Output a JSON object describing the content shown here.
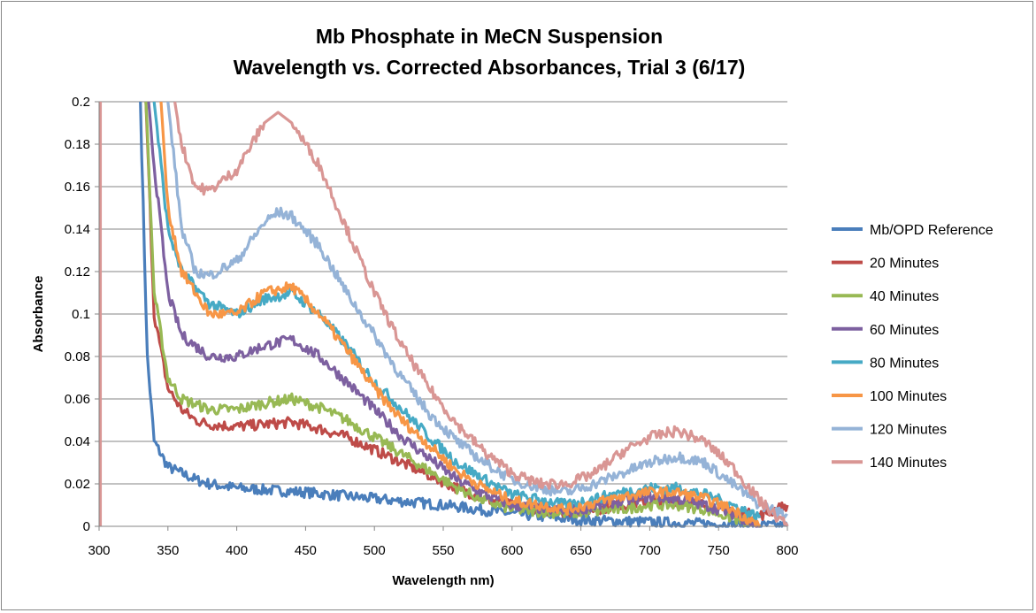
{
  "chart_data": {
    "type": "line",
    "title": [
      "Mb Phosphate in MeCN Suspension",
      "Wavelength vs. Corrected Absorbances, Trial 3 (6/17)"
    ],
    "xlabel": "Wavelength nm)",
    "ylabel": "Absorbance",
    "xlim": [
      300,
      800
    ],
    "ylim": [
      0,
      0.2
    ],
    "xticks": [
      300,
      350,
      400,
      450,
      500,
      550,
      600,
      650,
      700,
      750,
      800
    ],
    "yticks": [
      "0",
      "0.02",
      "0.04",
      "0.06",
      "0.08",
      "0.1",
      "0.12",
      "0.14",
      "0.16",
      "0.18",
      "0.2"
    ],
    "grid": "horizontal",
    "legend_position": "right",
    "series": [
      {
        "name": "Mb/OPD Reference",
        "color": "#4a7ebb",
        "points": [
          [
            330,
            0.2
          ],
          [
            335,
            0.08
          ],
          [
            340,
            0.04
          ],
          [
            350,
            0.028
          ],
          [
            360,
            0.025
          ],
          [
            370,
            0.022
          ],
          [
            380,
            0.02
          ],
          [
            400,
            0.018
          ],
          [
            450,
            0.016
          ],
          [
            500,
            0.013
          ],
          [
            550,
            0.01
          ],
          [
            600,
            0.006
          ],
          [
            650,
            0.003
          ],
          [
            700,
            0.002
          ],
          [
            750,
            0.001
          ],
          [
            800,
            0
          ]
        ]
      },
      {
        "name": "20 Minutes",
        "color": "#be4b48",
        "points": [
          [
            334,
            0.2
          ],
          [
            340,
            0.1
          ],
          [
            350,
            0.065
          ],
          [
            360,
            0.055
          ],
          [
            370,
            0.05
          ],
          [
            380,
            0.048
          ],
          [
            400,
            0.047
          ],
          [
            420,
            0.048
          ],
          [
            440,
            0.049
          ],
          [
            460,
            0.046
          ],
          [
            480,
            0.042
          ],
          [
            500,
            0.036
          ],
          [
            520,
            0.03
          ],
          [
            540,
            0.024
          ],
          [
            560,
            0.018
          ],
          [
            580,
            0.013
          ],
          [
            600,
            0.01
          ],
          [
            620,
            0.008
          ],
          [
            640,
            0.007
          ],
          [
            660,
            0.008
          ],
          [
            680,
            0.01
          ],
          [
            700,
            0.012
          ],
          [
            720,
            0.012
          ],
          [
            740,
            0.01
          ],
          [
            760,
            0.007
          ],
          [
            780,
            0.005
          ],
          [
            800,
            0.01
          ]
        ]
      },
      {
        "name": "40 Minutes",
        "color": "#98b954",
        "points": [
          [
            334,
            0.2
          ],
          [
            340,
            0.11
          ],
          [
            350,
            0.07
          ],
          [
            360,
            0.06
          ],
          [
            380,
            0.055
          ],
          [
            400,
            0.055
          ],
          [
            420,
            0.058
          ],
          [
            440,
            0.06
          ],
          [
            460,
            0.056
          ],
          [
            480,
            0.05
          ],
          [
            500,
            0.042
          ],
          [
            520,
            0.034
          ],
          [
            540,
            0.026
          ],
          [
            560,
            0.018
          ],
          [
            580,
            0.012
          ],
          [
            600,
            0.008
          ],
          [
            640,
            0.006
          ],
          [
            680,
            0.008
          ],
          [
            700,
            0.01
          ],
          [
            720,
            0.01
          ],
          [
            740,
            0.008
          ],
          [
            760,
            0.004
          ],
          [
            780,
            0
          ]
        ]
      },
      {
        "name": "60 Minutes",
        "color": "#7d60a0",
        "points": [
          [
            336,
            0.2
          ],
          [
            340,
            0.17
          ],
          [
            350,
            0.11
          ],
          [
            360,
            0.09
          ],
          [
            380,
            0.08
          ],
          [
            400,
            0.08
          ],
          [
            420,
            0.085
          ],
          [
            440,
            0.088
          ],
          [
            460,
            0.08
          ],
          [
            480,
            0.068
          ],
          [
            500,
            0.055
          ],
          [
            520,
            0.042
          ],
          [
            540,
            0.032
          ],
          [
            560,
            0.022
          ],
          [
            580,
            0.015
          ],
          [
            600,
            0.01
          ],
          [
            640,
            0.007
          ],
          [
            680,
            0.012
          ],
          [
            700,
            0.014
          ],
          [
            720,
            0.013
          ],
          [
            740,
            0.01
          ],
          [
            760,
            0.006
          ],
          [
            780,
            0
          ]
        ]
      },
      {
        "name": "80 Minutes",
        "color": "#46aac5",
        "points": [
          [
            340,
            0.2
          ],
          [
            350,
            0.14
          ],
          [
            360,
            0.12
          ],
          [
            380,
            0.105
          ],
          [
            400,
            0.1
          ],
          [
            420,
            0.107
          ],
          [
            440,
            0.11
          ],
          [
            460,
            0.1
          ],
          [
            480,
            0.085
          ],
          [
            500,
            0.068
          ],
          [
            520,
            0.055
          ],
          [
            540,
            0.042
          ],
          [
            560,
            0.03
          ],
          [
            580,
            0.022
          ],
          [
            600,
            0.015
          ],
          [
            640,
            0.01
          ],
          [
            680,
            0.016
          ],
          [
            700,
            0.018
          ],
          [
            720,
            0.018
          ],
          [
            740,
            0.015
          ],
          [
            760,
            0.01
          ],
          [
            780,
            0.004
          ]
        ]
      },
      {
        "name": "100 Minutes",
        "color": "#f79646",
        "points": [
          [
            345,
            0.2
          ],
          [
            350,
            0.15
          ],
          [
            360,
            0.12
          ],
          [
            380,
            0.1
          ],
          [
            400,
            0.1
          ],
          [
            420,
            0.11
          ],
          [
            440,
            0.113
          ],
          [
            460,
            0.1
          ],
          [
            480,
            0.083
          ],
          [
            500,
            0.065
          ],
          [
            520,
            0.05
          ],
          [
            540,
            0.038
          ],
          [
            560,
            0.026
          ],
          [
            580,
            0.018
          ],
          [
            600,
            0.012
          ],
          [
            640,
            0.008
          ],
          [
            680,
            0.014
          ],
          [
            700,
            0.016
          ],
          [
            720,
            0.016
          ],
          [
            740,
            0.013
          ],
          [
            760,
            0.008
          ],
          [
            780,
            0
          ]
        ]
      },
      {
        "name": "120 Minutes",
        "color": "#95b3d7",
        "points": [
          [
            350,
            0.2
          ],
          [
            360,
            0.14
          ],
          [
            370,
            0.12
          ],
          [
            380,
            0.118
          ],
          [
            400,
            0.125
          ],
          [
            420,
            0.143
          ],
          [
            430,
            0.148
          ],
          [
            440,
            0.146
          ],
          [
            460,
            0.132
          ],
          [
            480,
            0.11
          ],
          [
            500,
            0.09
          ],
          [
            520,
            0.07
          ],
          [
            540,
            0.053
          ],
          [
            560,
            0.04
          ],
          [
            580,
            0.03
          ],
          [
            600,
            0.022
          ],
          [
            620,
            0.018
          ],
          [
            640,
            0.016
          ],
          [
            660,
            0.02
          ],
          [
            680,
            0.025
          ],
          [
            700,
            0.03
          ],
          [
            720,
            0.033
          ],
          [
            740,
            0.03
          ],
          [
            760,
            0.02
          ],
          [
            780,
            0.01
          ],
          [
            800,
            0.005
          ]
        ]
      },
      {
        "name": "140 Minutes",
        "color": "#d99694",
        "points": [
          [
            355,
            0.2
          ],
          [
            360,
            0.18
          ],
          [
            370,
            0.16
          ],
          [
            380,
            0.158
          ],
          [
            400,
            0.168
          ],
          [
            420,
            0.19
          ],
          [
            430,
            0.195
          ],
          [
            440,
            0.19
          ],
          [
            460,
            0.17
          ],
          [
            480,
            0.14
          ],
          [
            500,
            0.11
          ],
          [
            520,
            0.085
          ],
          [
            540,
            0.065
          ],
          [
            560,
            0.048
          ],
          [
            580,
            0.035
          ],
          [
            600,
            0.025
          ],
          [
            620,
            0.02
          ],
          [
            640,
            0.02
          ],
          [
            660,
            0.025
          ],
          [
            680,
            0.035
          ],
          [
            700,
            0.042
          ],
          [
            720,
            0.045
          ],
          [
            740,
            0.04
          ],
          [
            760,
            0.028
          ],
          [
            780,
            0.012
          ],
          [
            800,
            0
          ]
        ]
      }
    ]
  }
}
